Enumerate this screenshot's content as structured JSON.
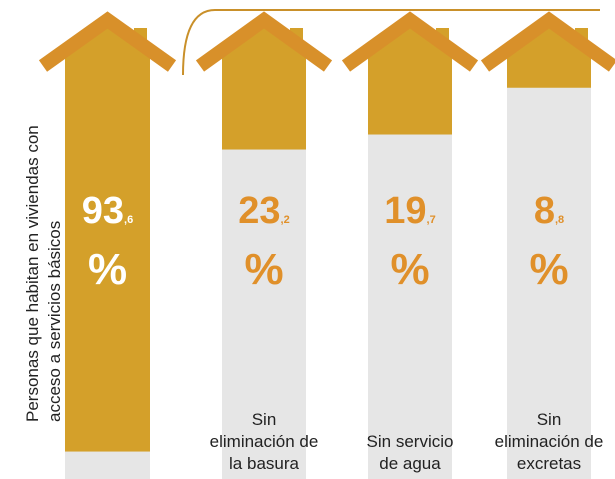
{
  "chart_data": {
    "type": "bar",
    "categories": [
      "Personas que habitan en viviendas con acceso a servicios básicos",
      "Sin eliminación de la basura",
      "Sin servicio de agua",
      "Sin eliminación de excretas"
    ],
    "values": [
      93.6,
      23.2,
      19.7,
      8.8
    ],
    "value_labels": [
      {
        "whole": "93",
        "decimal": ",6",
        "unit": "%"
      },
      {
        "whole": "23",
        "decimal": ",2",
        "unit": "%"
      },
      {
        "whole": "19",
        "decimal": ",7",
        "unit": "%"
      },
      {
        "whole": "8",
        "decimal": ",8",
        "unit": "%"
      }
    ],
    "ylim": [
      0,
      100
    ],
    "color": "#d4a02a",
    "roof_color": "#d8902a",
    "empty_color": "#e6e6e6",
    "label_color": "#e0902a"
  }
}
